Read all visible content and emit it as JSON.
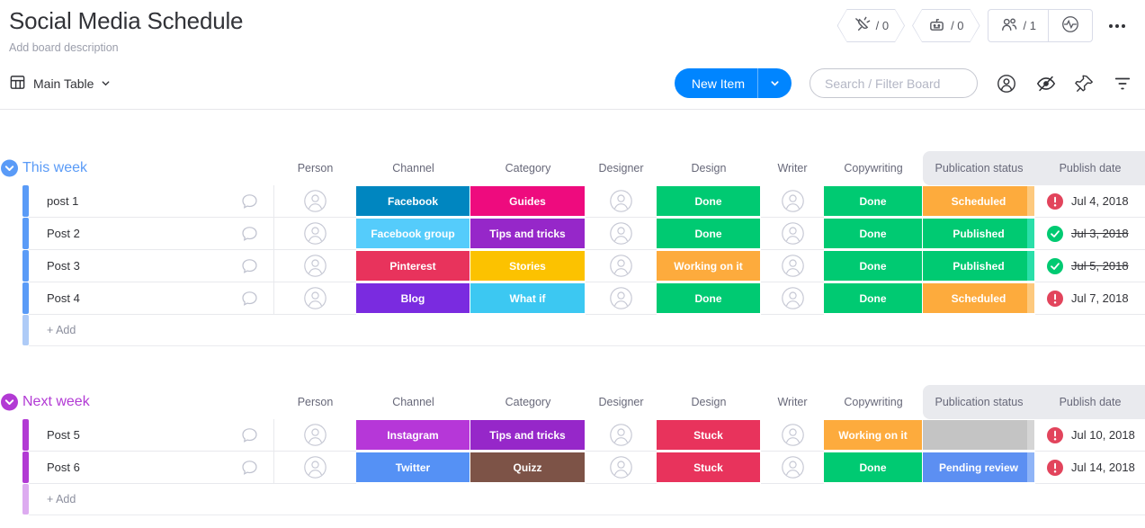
{
  "header": {
    "title": "Social Media Schedule",
    "description": "Add board description",
    "integrations_count": "/ 0",
    "automations_count": "/ 0",
    "subscribers_count": "/ 1"
  },
  "toolbar": {
    "view": "Main Table",
    "new_item": "New Item",
    "search_placeholder": "Search / Filter Board"
  },
  "icons": {
    "integrations": "plug-icon",
    "automations": "robot-icon",
    "subscribers": "people-icon",
    "activity": "pulse-icon",
    "menu": "three-dots-icon",
    "view": "table-icon",
    "person_filter": "person-icon",
    "hidden_columns": "eye-slash-icon",
    "pin": "pin-icon",
    "filter": "funnel-icon",
    "item_chat": "speech-bubble-icon",
    "avatar": "person-avatar-icon",
    "overdue": "red-exclamation-icon",
    "published": "green-check-icon"
  },
  "columns": [
    "Person",
    "Channel",
    "Category",
    "Designer",
    "Design",
    "Writer",
    "Copywriting",
    "Publication status",
    "Publish date"
  ],
  "add_label": "+ Add",
  "groups": [
    {
      "title": "This week",
      "color": "#5a9bf7",
      "add_bar_color": "#aecbf7",
      "rows": [
        {
          "name": "post 1",
          "channel": {
            "label": "Facebook",
            "color": "#0086c0"
          },
          "category": {
            "label": "Guides",
            "color": "#ee0b7e"
          },
          "design": {
            "label": "Done",
            "color": "#00ca72"
          },
          "copywriting": {
            "label": "Done",
            "color": "#00ca72"
          },
          "status": {
            "label": "Scheduled",
            "color": "#fdab3d",
            "strip": "#fdc97e"
          },
          "date": {
            "label": "Jul 4, 2018",
            "icon": "overdue",
            "struck": false
          }
        },
        {
          "name": "Post 2",
          "channel": {
            "label": "Facebook group",
            "color": "#55ccfb"
          },
          "category": {
            "label": "Tips and tricks",
            "color": "#9627c9"
          },
          "design": {
            "label": "Done",
            "color": "#00ca72"
          },
          "copywriting": {
            "label": "Done",
            "color": "#00ca72"
          },
          "status": {
            "label": "Published",
            "color": "#00ca72",
            "strip": "#2adfa9"
          },
          "date": {
            "label": "Jul 3, 2018",
            "icon": "done",
            "struck": true
          }
        },
        {
          "name": "Post 3",
          "channel": {
            "label": "Pinterest",
            "color": "#e8335c"
          },
          "category": {
            "label": "Stories",
            "color": "#fcc200"
          },
          "design": {
            "label": "Working on it",
            "color": "#fdab3d"
          },
          "copywriting": {
            "label": "Done",
            "color": "#00ca72"
          },
          "status": {
            "label": "Published",
            "color": "#00ca72",
            "strip": "#2adfa9"
          },
          "date": {
            "label": "Jul 5, 2018",
            "icon": "done",
            "struck": true
          }
        },
        {
          "name": "Post 4",
          "channel": {
            "label": "Blog",
            "color": "#7a2be0"
          },
          "category": {
            "label": "What if",
            "color": "#3cc8f2"
          },
          "design": {
            "label": "Done",
            "color": "#00ca72"
          },
          "copywriting": {
            "label": "Done",
            "color": "#00ca72"
          },
          "status": {
            "label": "Scheduled",
            "color": "#fdab3d",
            "strip": "#fdc97e"
          },
          "date": {
            "label": "Jul 7, 2018",
            "icon": "overdue",
            "struck": false
          }
        }
      ]
    },
    {
      "title": "Next week",
      "color": "#b23ad4",
      "add_bar_color": "#ddabf0",
      "rows": [
        {
          "name": "Post 5",
          "channel": {
            "label": "Instagram",
            "color": "#b637d8"
          },
          "category": {
            "label": "Tips and tricks",
            "color": "#9627c9"
          },
          "design": {
            "label": "Stuck",
            "color": "#e8335c"
          },
          "copywriting": {
            "label": "Working on it",
            "color": "#fdab3d"
          },
          "status": {
            "label": "",
            "color": "#c4c4c4",
            "strip": "#d5d5d5"
          },
          "date": {
            "label": "Jul 10, 2018",
            "icon": "overdue",
            "struck": false
          }
        },
        {
          "name": "Post 6",
          "channel": {
            "label": "Twitter",
            "color": "#5591f5"
          },
          "category": {
            "label": "Quizz",
            "color": "#7d5347"
          },
          "design": {
            "label": "Stuck",
            "color": "#e8335c"
          },
          "copywriting": {
            "label": "Done",
            "color": "#00ca72"
          },
          "status": {
            "label": "Pending review",
            "color": "#5c8ff2",
            "strip": "#8fb4f7"
          },
          "date": {
            "label": "Jul 14, 2018",
            "icon": "overdue",
            "struck": false
          }
        }
      ]
    }
  ]
}
